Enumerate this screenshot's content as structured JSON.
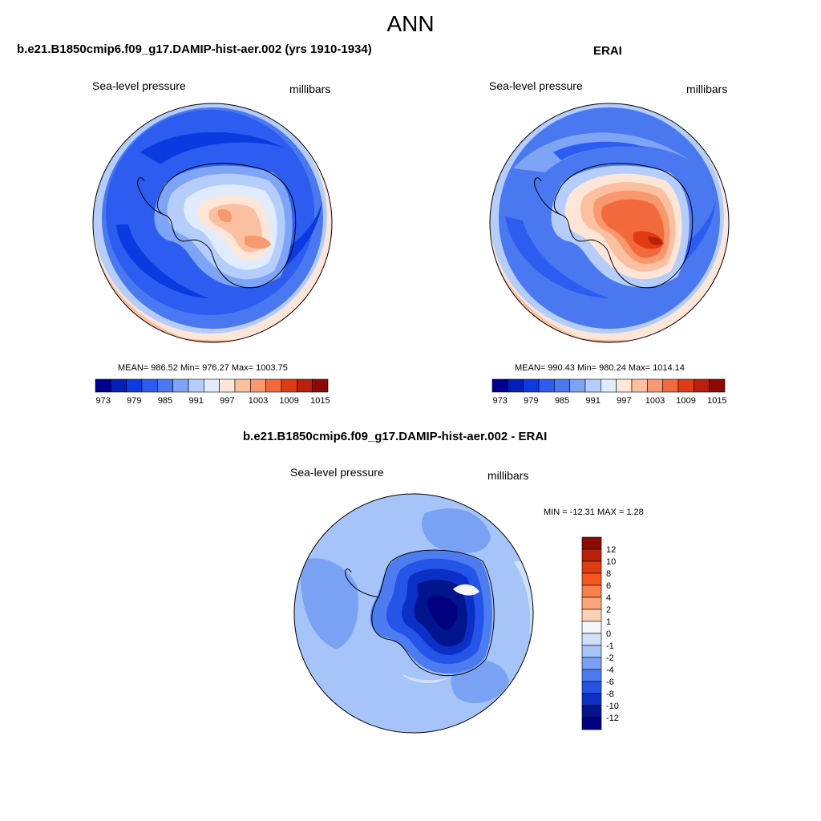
{
  "figure": {
    "title": "ANN"
  },
  "chart_data": [
    {
      "type": "heatmap",
      "projection": "south-polar-stereographic",
      "title": "b.e21.B1850cmip6.f09_g17.DAMIP-hist-aer.002 (yrs 1910-1934)",
      "left_label": "Sea-level pressure",
      "right_label": "millibars",
      "stats": {
        "mean": "986.52",
        "min": "976.27",
        "max": "1003.75"
      },
      "stats_text": "MEAN= 986.52  Min= 976.27  Max= 1003.75",
      "colorbar": {
        "orientation": "horizontal",
        "levels": [
          973,
          976,
          979,
          982,
          985,
          988,
          991,
          994,
          997,
          1000,
          1003,
          1006,
          1009,
          1012,
          1015
        ],
        "tick_labels": [
          "973",
          "979",
          "985",
          "991",
          "997",
          "1003",
          "1009",
          "1015"
        ],
        "colors": [
          "#00008c",
          "#0020b8",
          "#0a3ae0",
          "#2c5cf0",
          "#4a78f0",
          "#7da4f5",
          "#b4cdfa",
          "#e0ecfc",
          "#fde6d8",
          "#fbc0a0",
          "#f8986e",
          "#f26a3c",
          "#e03c14",
          "#b8200a",
          "#8c0a02"
        ]
      }
    },
    {
      "type": "heatmap",
      "projection": "south-polar-stereographic",
      "title": "ERAI",
      "left_label": "Sea-level pressure",
      "right_label": "millibars",
      "stats": {
        "mean": "990.43",
        "min": "980.24",
        "max": "1014.14"
      },
      "stats_text": "MEAN= 990.43  Min= 980.24  Max= 1014.14",
      "colorbar": {
        "orientation": "horizontal",
        "levels": [
          973,
          976,
          979,
          982,
          985,
          988,
          991,
          994,
          997,
          1000,
          1003,
          1006,
          1009,
          1012,
          1015
        ],
        "tick_labels": [
          "973",
          "979",
          "985",
          "991",
          "997",
          "1003",
          "1009",
          "1015"
        ],
        "colors": [
          "#00008c",
          "#0020b8",
          "#0a3ae0",
          "#2c5cf0",
          "#4a78f0",
          "#7da4f5",
          "#b4cdfa",
          "#e0ecfc",
          "#fde6d8",
          "#fbc0a0",
          "#f8986e",
          "#f26a3c",
          "#e03c14",
          "#b8200a",
          "#8c0a02"
        ]
      }
    },
    {
      "type": "heatmap",
      "projection": "south-polar-stereographic",
      "title": "b.e21.B1850cmip6.f09_g17.DAMIP-hist-aer.002 - ERAI",
      "left_label": "Sea-level pressure",
      "right_label": "millibars",
      "stats": {
        "min": "-12.31",
        "max": "1.28"
      },
      "stats_text": "MIN = -12.31 MAX =   1.28",
      "colorbar": {
        "orientation": "vertical",
        "levels": [
          12,
          10,
          8,
          6,
          4,
          2,
          1,
          0,
          -1,
          -2,
          -4,
          -6,
          -8,
          -10,
          -12
        ],
        "tick_labels": [
          "12",
          "10",
          "8",
          "6",
          "4",
          "2",
          "1",
          "0",
          "-1",
          "-2",
          "-4",
          "-6",
          "-8",
          "-10",
          "-12"
        ],
        "colors": [
          "#8c0a02",
          "#b8200a",
          "#e03c14",
          "#f8561e",
          "#f8804a",
          "#fba67a",
          "#fcd2b6",
          "#f4f6fc",
          "#cfe0fb",
          "#a6c4f8",
          "#7aa2f4",
          "#4c7cf0",
          "#2454e8",
          "#0a30c8",
          "#00148c",
          "#000080"
        ]
      }
    }
  ]
}
